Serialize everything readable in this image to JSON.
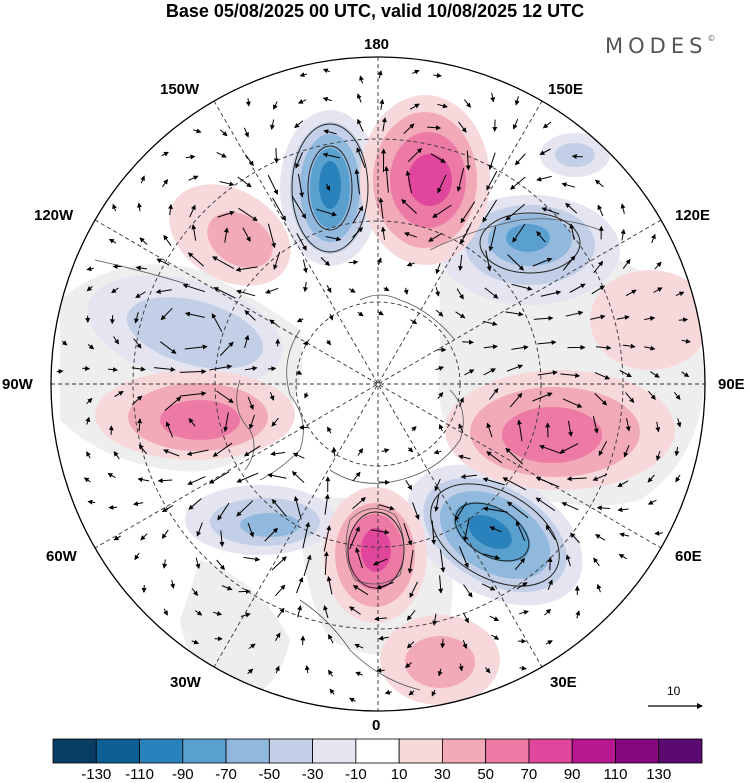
{
  "title": "Base 05/08/2025 00 UTC, valid 10/08/2025 12 UTC",
  "brand": "MODES",
  "brand_mark": "©",
  "longitude_labels": {
    "n180": "180",
    "w150": "150W",
    "e150": "150E",
    "w120": "120W",
    "e120": "120E",
    "w90": "90W",
    "e90": "90E",
    "w60": "60W",
    "e60": "60E",
    "w30": "30W",
    "e30": "30E",
    "s0": "0"
  },
  "vector_scale_label": "10",
  "legend": {
    "ticks": [
      "-130",
      "-110",
      "-90",
      "-70",
      "-50",
      "-30",
      "-10",
      "10",
      "30",
      "50",
      "70",
      "90",
      "110",
      "130"
    ],
    "colors": [
      "#0a3d63",
      "#0e5f93",
      "#2a82bd",
      "#5aa0cf",
      "#91b9de",
      "#c2cfe6",
      "#e5e4f1",
      "#ffffff",
      "#f7d9db",
      "#f2aab8",
      "#ec7aa5",
      "#e0479c",
      "#b8178f",
      "#86087f",
      "#5b0a72"
    ]
  },
  "anomaly_field": [
    {
      "name": "trough-north-pacific",
      "sign": "negative",
      "peak": -110
    },
    {
      "name": "ridge-east-siberia",
      "sign": "positive",
      "peak": 90
    },
    {
      "name": "trough-far-east",
      "sign": "negative",
      "peak": -70
    },
    {
      "name": "ridge-central-siberia",
      "sign": "positive",
      "peak": 70
    },
    {
      "name": "trough-west-russia",
      "sign": "negative",
      "peak": -110
    },
    {
      "name": "ridge-north-atlantic",
      "sign": "positive",
      "peak": 90
    },
    {
      "name": "trough-north-atlantic-west",
      "sign": "negative",
      "peak": -70
    },
    {
      "name": "ridge-canada",
      "sign": "positive",
      "peak": 70
    },
    {
      "name": "trough-alaska-canada",
      "sign": "negative",
      "peak": -50
    },
    {
      "name": "ridge-alaska",
      "sign": "positive",
      "peak": 50
    },
    {
      "name": "ridge-europe-south",
      "sign": "positive",
      "peak": 50
    }
  ]
}
